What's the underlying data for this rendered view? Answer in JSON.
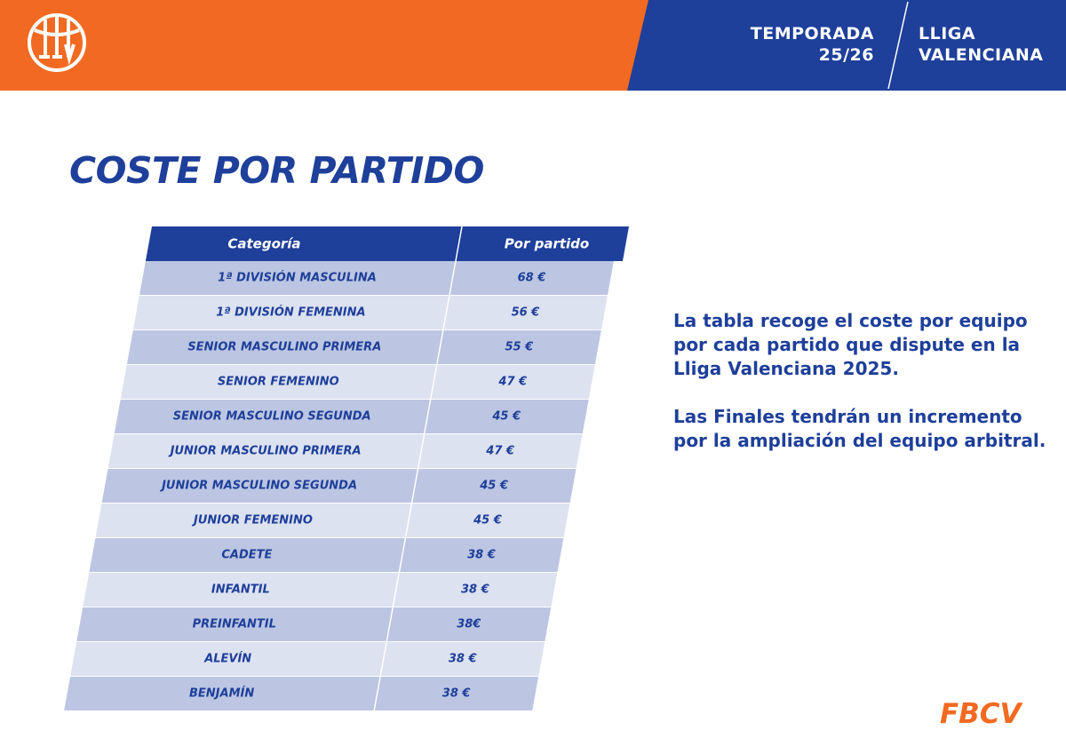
{
  "header": {
    "season_line1": "TEMPORADA",
    "season_line2": "25/26",
    "league_line1": "LLIGA",
    "league_line2": "VALENCIANA",
    "colors": {
      "orange": "#f26a21",
      "blue": "#1e3f9a"
    },
    "logo_icon": "basketball-llv-logo"
  },
  "title": "COSTE POR PARTIDO",
  "table": {
    "headers": {
      "category": "Categoría",
      "price": "Por partido"
    },
    "rows": [
      {
        "category": "1ª DIVISIÓN MASCULINA",
        "price": "68 €"
      },
      {
        "category": "1ª DIVISIÓN FEMENINA",
        "price": "56 €"
      },
      {
        "category": "SENIOR MASCULINO PRIMERA",
        "price": "55 €"
      },
      {
        "category": "SENIOR FEMENINO",
        "price": "47 €"
      },
      {
        "category": "SENIOR MASCULINO SEGUNDA",
        "price": "45 €"
      },
      {
        "category": "JUNIOR MASCULINO PRIMERA",
        "price": "47 €"
      },
      {
        "category": "JUNIOR MASCULINO SEGUNDA",
        "price": "45 €"
      },
      {
        "category": "JUNIOR FEMENINO",
        "price": "45 €"
      },
      {
        "category": "CADETE",
        "price": "38 €"
      },
      {
        "category": "INFANTIL",
        "price": "38 €"
      },
      {
        "category": "PREINFANTIL",
        "price": "38€"
      },
      {
        "category": "ALEVÍN",
        "price": "38 €"
      },
      {
        "category": "BENJAMÍN",
        "price": "38 €"
      }
    ],
    "colors": {
      "header_bg": "#1e3f9a",
      "row_dark": "#bcc6e2",
      "row_light": "#dde2f1",
      "text": "#1e3f9a"
    }
  },
  "description": {
    "paragraph1": "La tabla recoge el coste por equipo por cada partido que dispute en la Lliga Valenciana 2025.",
    "paragraph2": "Las Finales tendrán un incremento por la ampliación del equipo arbitral."
  },
  "footer": {
    "brand": "FBCV"
  }
}
